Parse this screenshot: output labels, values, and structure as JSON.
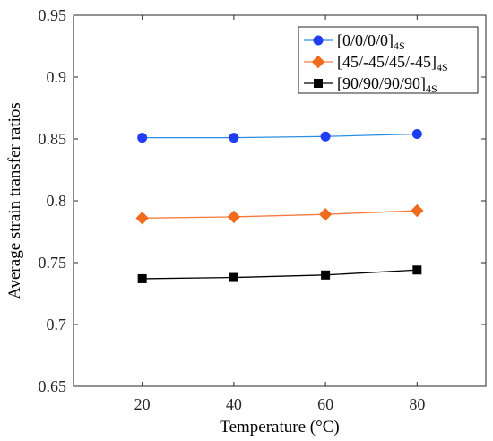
{
  "chart_data": {
    "type": "line",
    "x": [
      20,
      40,
      60,
      80
    ],
    "xticks": [
      20,
      40,
      60,
      80
    ],
    "xlim": [
      5,
      95
    ],
    "yticks": [
      0.65,
      0.7,
      0.75,
      0.8,
      0.85,
      0.9,
      0.95
    ],
    "ytick_labels": [
      "0.65",
      "0.7",
      "0.75",
      "0.8",
      "0.85",
      "0.9",
      "0.95"
    ],
    "ylim": [
      0.65,
      0.95
    ],
    "xlabel": "Temperature (°C)",
    "ylabel": "Average strain transfer ratios",
    "grid": false,
    "legend_position": "top-right",
    "series": [
      {
        "name": "[0/0/0/0]",
        "name_subscript": "4S",
        "values": [
          0.851,
          0.851,
          0.852,
          0.854
        ],
        "line_color": "#2b8de0",
        "marker": "circle",
        "marker_color": "#1f3df5"
      },
      {
        "name": "[45/-45/45/-45]",
        "name_subscript": "4S",
        "values": [
          0.786,
          0.787,
          0.789,
          0.792
        ],
        "line_color": "#f47a3f",
        "marker": "diamond",
        "marker_color": "#f26b1d"
      },
      {
        "name": "[90/90/90/90]",
        "name_subscript": "4S",
        "values": [
          0.737,
          0.738,
          0.74,
          0.744
        ],
        "line_color": "#000000",
        "marker": "square",
        "marker_color": "#000000"
      }
    ]
  }
}
